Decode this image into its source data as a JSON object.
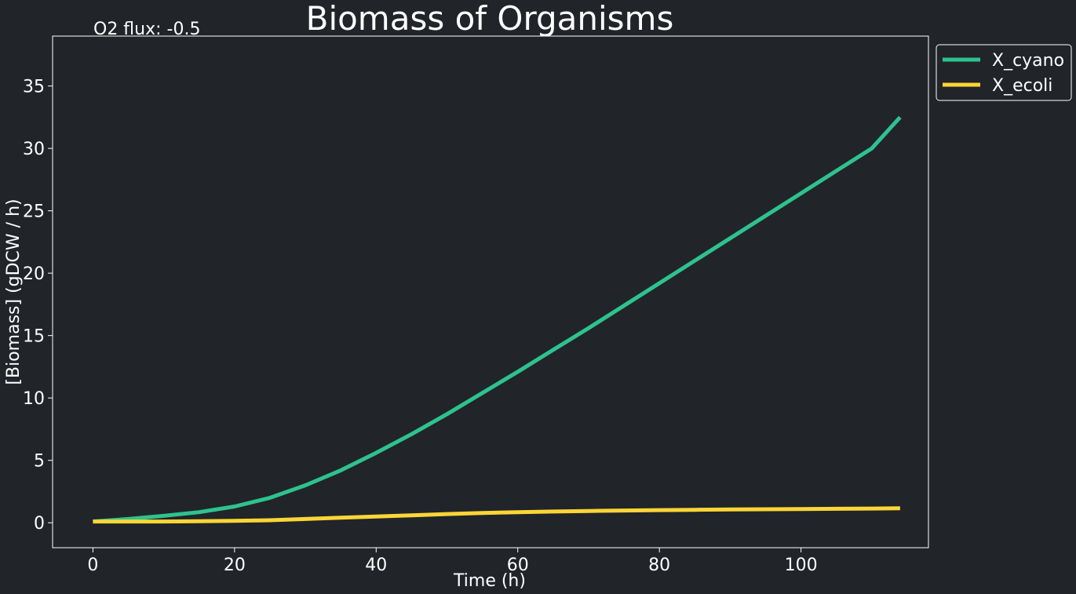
{
  "chart_data": {
    "type": "line",
    "title": "Biomass of Organisms",
    "annotation": "O2 flux: -0.5",
    "xlabel": "Time (h)",
    "ylabel": "[Biomass] (gDCW / h)",
    "xlim": [
      -5.7,
      118
    ],
    "ylim": [
      -2,
      39
    ],
    "xticks": [
      0,
      20,
      40,
      60,
      80,
      100
    ],
    "yticks": [
      0,
      5,
      10,
      15,
      20,
      25,
      30,
      35
    ],
    "grid": false,
    "legend_position": "outside top-right",
    "background": "#212429",
    "axes_color": "#ffffff",
    "x": [
      0,
      5,
      10,
      15,
      20,
      25,
      30,
      35,
      40,
      45,
      50,
      55,
      60,
      65,
      70,
      75,
      80,
      85,
      90,
      95,
      100,
      105,
      110,
      114
    ],
    "series": [
      {
        "name": "X_cyano",
        "color": "#2ec28e",
        "values": [
          0.1,
          0.3,
          0.55,
          0.85,
          1.3,
          2.0,
          3.0,
          4.2,
          5.6,
          7.1,
          8.7,
          10.4,
          12.1,
          13.85,
          15.6,
          17.4,
          19.2,
          21.0,
          22.8,
          24.6,
          26.4,
          28.2,
          30.0,
          32.5
        ]
      },
      {
        "name": "X_ecoli",
        "color": "#fcd537",
        "values": [
          0.1,
          0.1,
          0.1,
          0.12,
          0.15,
          0.2,
          0.3,
          0.4,
          0.5,
          0.6,
          0.7,
          0.78,
          0.85,
          0.9,
          0.94,
          0.98,
          1.01,
          1.04,
          1.06,
          1.08,
          1.1,
          1.12,
          1.14,
          1.16
        ]
      }
    ]
  }
}
